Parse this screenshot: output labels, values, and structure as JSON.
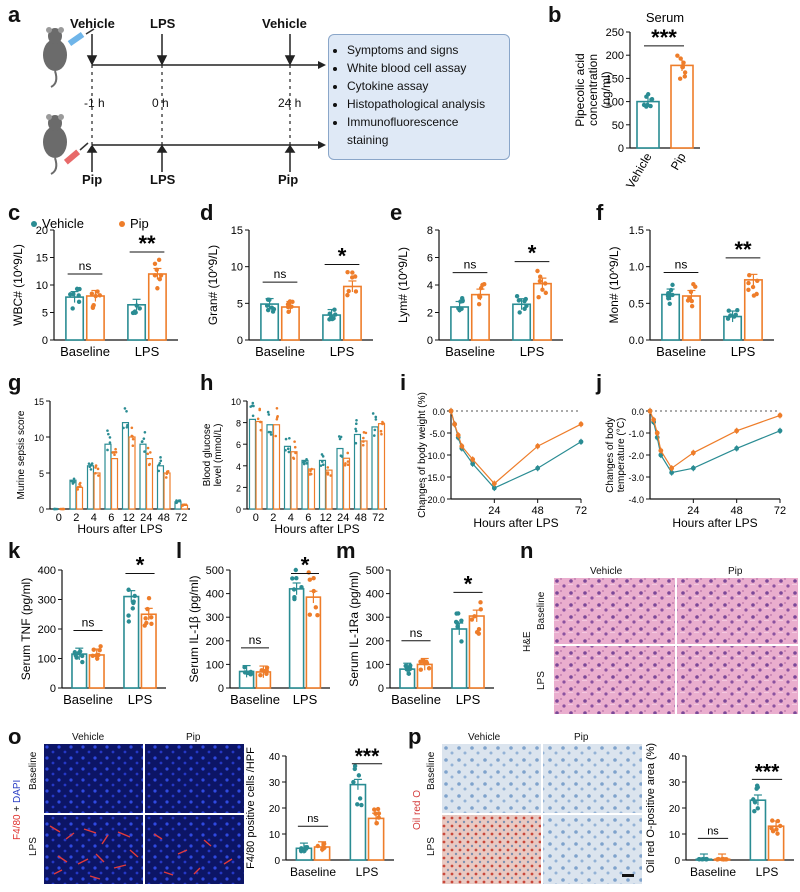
{
  "panels": {
    "a": "a",
    "b": "b",
    "c": "c",
    "d": "d",
    "e": "e",
    "f": "f",
    "g": "g",
    "h": "h",
    "i": "i",
    "j": "j",
    "k": "k",
    "l": "l",
    "m": "m",
    "n": "n",
    "o": "o",
    "p": "p"
  },
  "timeline": {
    "vehicle_label": "Vehicle",
    "lps_label": "LPS",
    "pip_label": "Pip",
    "times": [
      "-1 h",
      "0 h",
      "24 h"
    ],
    "assays": [
      "Symptoms and signs",
      "White blood cell assay",
      "Cytokine assay",
      "Histopathological analysis",
      "Immunofluorescence",
      "staining"
    ]
  },
  "legend": {
    "vehicle": "Vehicle",
    "pip": "Pip"
  },
  "micro": {
    "n": {
      "col1": "Vehicle",
      "col2": "Pip",
      "row1": "Baseline",
      "row2": "LPS",
      "stain": "H&E"
    },
    "o": {
      "col1": "Vehicle",
      "col2": "Pip",
      "row1": "Baseline",
      "row2": "LPS",
      "stain_a": "F4/80",
      "stain_b": " + ",
      "stain_c": "DAPI"
    },
    "p": {
      "col1": "Vehicle",
      "col2": "Pip",
      "row1": "Baseline",
      "row2": "LPS",
      "stain": "Oil red O"
    }
  },
  "colors": {
    "vehicle": "#2a8c93",
    "pip": "#ee7d2a",
    "he_pink": "#e7a3c8",
    "fluor_bg": "#0c1566",
    "oil_bg": "#dbe4ee"
  },
  "chart_data": [
    {
      "id": "b",
      "type": "bar",
      "title": "Serum",
      "ylabel": "Pipecolic acid concentration (ng/ml)",
      "categories": [
        "Vehicle",
        "Pip"
      ],
      "values": [
        100,
        178
      ],
      "ylim": [
        0,
        250
      ],
      "yticks": [
        0,
        50,
        100,
        150,
        200,
        250
      ],
      "sig": "***"
    },
    {
      "id": "c",
      "type": "bar",
      "ylabel": "WBC# (10^9/L)",
      "groups": [
        "Baseline",
        "LPS"
      ],
      "series": [
        {
          "name": "Vehicle",
          "values": [
            7.8,
            6.4
          ]
        },
        {
          "name": "Pip",
          "values": [
            8.0,
            12.0
          ]
        }
      ],
      "ylim": [
        0,
        20
      ],
      "yticks": [
        0,
        5,
        10,
        15,
        20
      ],
      "sig": [
        "ns",
        "**"
      ]
    },
    {
      "id": "d",
      "type": "bar",
      "ylabel": "Gran# (10^9/L)",
      "groups": [
        "Baseline",
        "LPS"
      ],
      "series": [
        {
          "name": "Vehicle",
          "values": [
            4.9,
            3.4
          ]
        },
        {
          "name": "Pip",
          "values": [
            4.5,
            7.3
          ]
        }
      ],
      "ylim": [
        0,
        15
      ],
      "yticks": [
        0,
        5,
        10,
        15
      ],
      "sig": [
        "ns",
        "*"
      ]
    },
    {
      "id": "e",
      "type": "bar",
      "ylabel": "Lym# (10^9/L)",
      "groups": [
        "Baseline",
        "LPS"
      ],
      "series": [
        {
          "name": "Vehicle",
          "values": [
            2.4,
            2.6
          ]
        },
        {
          "name": "Pip",
          "values": [
            3.3,
            4.1
          ]
        }
      ],
      "ylim": [
        0,
        8
      ],
      "yticks": [
        0,
        2,
        4,
        6,
        8
      ],
      "sig": [
        "ns",
        "*"
      ]
    },
    {
      "id": "f",
      "type": "bar",
      "ylabel": "Mon# (10^9/L)",
      "groups": [
        "Baseline",
        "LPS"
      ],
      "series": [
        {
          "name": "Vehicle",
          "values": [
            0.62,
            0.32
          ]
        },
        {
          "name": "Pip",
          "values": [
            0.6,
            0.82
          ]
        }
      ],
      "ylim": [
        0,
        1.5
      ],
      "yticks": [
        0.0,
        0.5,
        1.0,
        1.5
      ],
      "sig": [
        "ns",
        "**"
      ]
    },
    {
      "id": "g",
      "type": "bar",
      "ylabel": "Murine sepsis score",
      "xlabel": "Hours after LPS",
      "categories": [
        "0",
        "2",
        "4",
        "6",
        "12",
        "24",
        "48",
        "72"
      ],
      "series": [
        {
          "name": "Vehicle",
          "values": [
            0,
            4,
            6,
            9,
            12,
            9,
            6,
            1
          ]
        },
        {
          "name": "Pip",
          "values": [
            0,
            3,
            5,
            7,
            10,
            7,
            5,
            0.5
          ]
        }
      ],
      "ylim": [
        0,
        15
      ],
      "yticks": [
        0,
        5,
        10,
        15
      ]
    },
    {
      "id": "h",
      "type": "bar",
      "ylabel": "Blood glucose level (mmol/L)",
      "xlabel": "Hours after LPS",
      "categories": [
        "0",
        "2",
        "4",
        "6",
        "12",
        "24",
        "48",
        "72"
      ],
      "series": [
        {
          "name": "Vehicle",
          "values": [
            8.3,
            7.8,
            5.8,
            4.5,
            4.5,
            5.6,
            6.9,
            7.6
          ]
        },
        {
          "name": "Pip",
          "values": [
            8.1,
            7.8,
            5.3,
            3.7,
            3.6,
            4.7,
            6.3,
            7.9
          ]
        }
      ],
      "ylim": [
        0,
        10
      ],
      "yticks": [
        0,
        2,
        4,
        6,
        8,
        10
      ]
    },
    {
      "id": "i",
      "type": "line",
      "ylabel": "Changes of body weight (%)",
      "xlabel": "Hours after LPS",
      "x": [
        0,
        2,
        4,
        6,
        12,
        24,
        48,
        72
      ],
      "series": [
        {
          "name": "Vehicle",
          "values": [
            0,
            -3,
            -6,
            -8.5,
            -12,
            -17.5,
            -13,
            -7
          ]
        },
        {
          "name": "Pip",
          "values": [
            0,
            -3,
            -5.5,
            -8,
            -11,
            -16.5,
            -8,
            -3
          ]
        }
      ],
      "ylim": [
        -20,
        0
      ],
      "yticks": [
        0,
        -5,
        -10,
        -15,
        -20
      ],
      "xticks": [
        24,
        48,
        72
      ]
    },
    {
      "id": "j",
      "type": "line",
      "ylabel": "Changes of body temperature (°C)",
      "xlabel": "Hours after LPS",
      "x": [
        0,
        2,
        4,
        6,
        12,
        24,
        48,
        72
      ],
      "series": [
        {
          "name": "Vehicle",
          "values": [
            0,
            -0.5,
            -1.2,
            -2.0,
            -2.8,
            -2.6,
            -1.7,
            -0.9
          ]
        },
        {
          "name": "Pip",
          "values": [
            0,
            -0.4,
            -1.0,
            -1.8,
            -2.6,
            -1.9,
            -0.9,
            -0.2
          ]
        }
      ],
      "ylim": [
        -4,
        0
      ],
      "yticks": [
        0,
        -1,
        -2,
        -3,
        -4
      ],
      "xticks": [
        24,
        48,
        72
      ]
    },
    {
      "id": "k",
      "type": "bar",
      "ylabel": "Serum TNF (pg/ml)",
      "groups": [
        "Baseline",
        "LPS"
      ],
      "series": [
        {
          "name": "Vehicle",
          "values": [
            115,
            310
          ]
        },
        {
          "name": "Pip",
          "values": [
            112,
            250
          ]
        }
      ],
      "ylim": [
        0,
        400
      ],
      "yticks": [
        0,
        100,
        200,
        300,
        400
      ],
      "sig": [
        "ns",
        "*"
      ]
    },
    {
      "id": "l",
      "type": "bar",
      "ylabel": "Serum IL-1β (pg/ml)",
      "groups": [
        "Baseline",
        "LPS"
      ],
      "series": [
        {
          "name": "Vehicle",
          "values": [
            70,
            420
          ]
        },
        {
          "name": "Pip",
          "values": [
            68,
            385
          ]
        }
      ],
      "ylim": [
        0,
        500
      ],
      "yticks": [
        0,
        100,
        200,
        300,
        400,
        500
      ],
      "sig": [
        "ns",
        "*"
      ]
    },
    {
      "id": "m",
      "type": "bar",
      "ylabel": "Serum IL-1Ra (pg/ml)",
      "groups": [
        "Baseline",
        "LPS"
      ],
      "series": [
        {
          "name": "Vehicle",
          "values": [
            80,
            250
          ]
        },
        {
          "name": "Pip",
          "values": [
            100,
            305
          ]
        }
      ],
      "ylim": [
        0,
        500
      ],
      "yticks": [
        0,
        100,
        200,
        300,
        400,
        500
      ],
      "sig": [
        "ns",
        "*"
      ]
    },
    {
      "id": "o",
      "type": "bar",
      "ylabel": "F4/80 positive cells /HPF",
      "groups": [
        "Baseline",
        "LPS"
      ],
      "series": [
        {
          "name": "Vehicle",
          "values": [
            4.5,
            29
          ]
        },
        {
          "name": "Pip",
          "values": [
            5,
            16
          ]
        }
      ],
      "ylim": [
        0,
        40
      ],
      "yticks": [
        0,
        10,
        20,
        30,
        40
      ],
      "sig": [
        "ns",
        "***"
      ]
    },
    {
      "id": "p",
      "type": "bar",
      "ylabel": "Oil red O-positive area (%)",
      "groups": [
        "Baseline",
        "LPS"
      ],
      "series": [
        {
          "name": "Vehicle",
          "values": [
            0.3,
            23
          ]
        },
        {
          "name": "Pip",
          "values": [
            0.3,
            13
          ]
        }
      ],
      "ylim": [
        0,
        40
      ],
      "yticks": [
        0,
        10,
        20,
        30,
        40
      ],
      "sig": [
        "ns",
        "***"
      ]
    }
  ]
}
